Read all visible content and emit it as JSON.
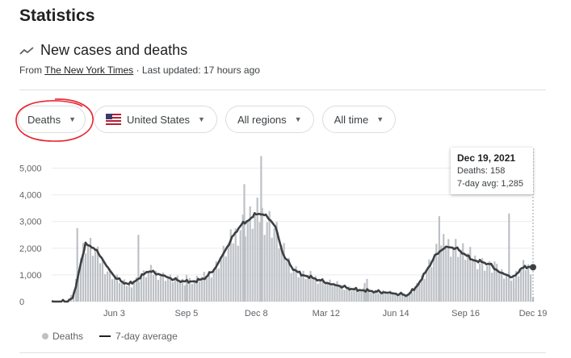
{
  "page": {
    "title": "Statistics"
  },
  "section": {
    "title": "New cases and deaths",
    "icon": "trending-line-icon",
    "source_prefix": "From ",
    "source_link": "The New York Times",
    "last_updated": " · Last updated: 17 hours ago"
  },
  "filters": {
    "metric": "Deaths",
    "country": "United States",
    "region": "All regions",
    "time": "All time"
  },
  "tooltip": {
    "date": "Dec 19, 2021",
    "deaths_label": "Deaths: 158",
    "avg_label": "7-day avg: 1,285"
  },
  "legend": {
    "bars_label": "Deaths",
    "line_label": "7-day average"
  },
  "colors": {
    "bars": "#bdc1c6",
    "line": "#3c4043",
    "annotation": "#e8232f"
  },
  "chart_data": {
    "type": "bar",
    "title": "New cases and deaths",
    "ylim": [
      0,
      5500
    ],
    "y_ticks": [
      0,
      1000,
      2000,
      3000,
      4000,
      5000
    ],
    "y_tick_labels": [
      "0",
      "1,000",
      "2,000",
      "3,000",
      "4,000",
      "5,000"
    ],
    "x_tick_labels": [
      "Jun 3",
      "Sep 5",
      "Dec 8",
      "Mar 12",
      "Jun 14",
      "Sep 16",
      "Dec 19"
    ],
    "x_tick_positions": [
      0.13,
      0.28,
      0.425,
      0.57,
      0.715,
      0.86,
      1.0
    ],
    "series": [
      {
        "name": "Deaths",
        "type": "bar",
        "keys": [
          [
            0,
            0
          ],
          [
            0.03,
            0
          ],
          [
            0.045,
            300
          ],
          [
            0.06,
            1700
          ],
          [
            0.07,
            2200
          ],
          [
            0.085,
            2000
          ],
          [
            0.1,
            1600
          ],
          [
            0.115,
            1200
          ],
          [
            0.13,
            950
          ],
          [
            0.145,
            750
          ],
          [
            0.16,
            600
          ],
          [
            0.175,
            800
          ],
          [
            0.19,
            1000
          ],
          [
            0.205,
            1150
          ],
          [
            0.22,
            1050
          ],
          [
            0.235,
            950
          ],
          [
            0.25,
            850
          ],
          [
            0.265,
            800
          ],
          [
            0.28,
            780
          ],
          [
            0.3,
            820
          ],
          [
            0.32,
            950
          ],
          [
            0.34,
            1300
          ],
          [
            0.36,
            1900
          ],
          [
            0.38,
            2500
          ],
          [
            0.395,
            2900
          ],
          [
            0.41,
            3050
          ],
          [
            0.42,
            3200
          ],
          [
            0.435,
            3300
          ],
          [
            0.45,
            3100
          ],
          [
            0.465,
            2700
          ],
          [
            0.48,
            1900
          ],
          [
            0.5,
            1300
          ],
          [
            0.52,
            1000
          ],
          [
            0.54,
            950
          ],
          [
            0.56,
            800
          ],
          [
            0.58,
            700
          ],
          [
            0.6,
            600
          ],
          [
            0.62,
            500
          ],
          [
            0.64,
            430
          ],
          [
            0.66,
            420
          ],
          [
            0.68,
            380
          ],
          [
            0.7,
            350
          ],
          [
            0.72,
            300
          ],
          [
            0.74,
            250
          ],
          [
            0.76,
            600
          ],
          [
            0.78,
            1300
          ],
          [
            0.8,
            1900
          ],
          [
            0.82,
            2200
          ],
          [
            0.84,
            2100
          ],
          [
            0.86,
            1800
          ],
          [
            0.88,
            1600
          ],
          [
            0.9,
            1400
          ],
          [
            0.92,
            1200
          ],
          [
            0.94,
            1100
          ],
          [
            0.96,
            900
          ],
          [
            0.98,
            1300
          ],
          [
            1.0,
            1300
          ]
        ],
        "spikes": [
          [
            0.053,
            2750
          ],
          [
            0.18,
            2500
          ],
          [
            0.4,
            4400
          ],
          [
            0.435,
            5450
          ],
          [
            0.655,
            850
          ],
          [
            0.65,
            700
          ],
          [
            0.805,
            3200
          ],
          [
            0.92,
            1500
          ],
          [
            0.95,
            3300
          ],
          [
            0.28,
            1000
          ],
          [
            0.96,
            500
          ]
        ],
        "last_value": 158
      },
      {
        "name": "7-day average",
        "type": "line",
        "keys": [
          [
            0,
            0
          ],
          [
            0.03,
            0
          ],
          [
            0.045,
            150
          ],
          [
            0.06,
            1400
          ],
          [
            0.07,
            2150
          ],
          [
            0.085,
            2050
          ],
          [
            0.1,
            1750
          ],
          [
            0.115,
            1300
          ],
          [
            0.13,
            950
          ],
          [
            0.145,
            750
          ],
          [
            0.16,
            650
          ],
          [
            0.175,
            780
          ],
          [
            0.19,
            1000
          ],
          [
            0.2,
            1150
          ],
          [
            0.21,
            1100
          ],
          [
            0.235,
            950
          ],
          [
            0.25,
            850
          ],
          [
            0.265,
            780
          ],
          [
            0.28,
            750
          ],
          [
            0.3,
            760
          ],
          [
            0.32,
            900
          ],
          [
            0.34,
            1250
          ],
          [
            0.36,
            1900
          ],
          [
            0.38,
            2550
          ],
          [
            0.395,
            2900
          ],
          [
            0.41,
            3050
          ],
          [
            0.42,
            3250
          ],
          [
            0.435,
            3300
          ],
          [
            0.45,
            3150
          ],
          [
            0.465,
            2800
          ],
          [
            0.48,
            1800
          ],
          [
            0.5,
            1250
          ],
          [
            0.52,
            1000
          ],
          [
            0.54,
            900
          ],
          [
            0.56,
            780
          ],
          [
            0.58,
            650
          ],
          [
            0.6,
            580
          ],
          [
            0.62,
            480
          ],
          [
            0.64,
            430
          ],
          [
            0.66,
            400
          ],
          [
            0.68,
            360
          ],
          [
            0.7,
            330
          ],
          [
            0.72,
            280
          ],
          [
            0.74,
            240
          ],
          [
            0.76,
            600
          ],
          [
            0.78,
            1200
          ],
          [
            0.8,
            1800
          ],
          [
            0.82,
            2050
          ],
          [
            0.84,
            2000
          ],
          [
            0.86,
            1750
          ],
          [
            0.875,
            1550
          ],
          [
            0.89,
            1500
          ],
          [
            0.91,
            1400
          ],
          [
            0.93,
            1100
          ],
          [
            0.945,
            1000
          ],
          [
            0.96,
            900
          ],
          [
            0.975,
            1250
          ],
          [
            0.99,
            1300
          ],
          [
            1.0,
            1285
          ]
        ]
      }
    ]
  }
}
